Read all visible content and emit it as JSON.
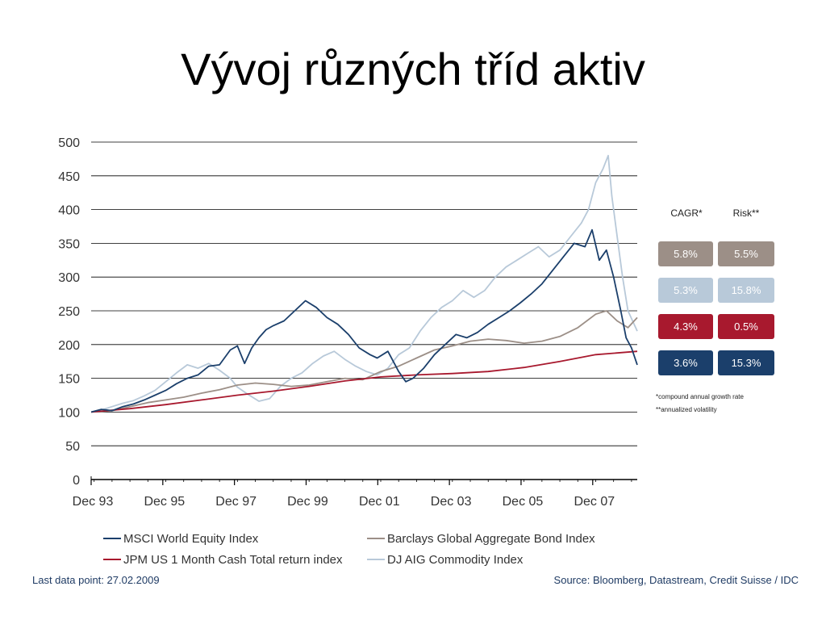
{
  "slide": {
    "title": "Vývoj různých tříd aktiv"
  },
  "chart_data": {
    "type": "line",
    "ylim": [
      0,
      500
    ],
    "yticks": [
      0,
      50,
      100,
      150,
      200,
      250,
      300,
      350,
      400,
      450,
      500
    ],
    "xlim": [
      1993.917,
      2009.16
    ],
    "xticks": [
      {
        "label": "Dec 93",
        "x": 1993.917
      },
      {
        "label": "Dec 95",
        "x": 1995.917
      },
      {
        "label": "Dec 97",
        "x": 1997.917
      },
      {
        "label": "Dec 99",
        "x": 1999.917
      },
      {
        "label": "Dec 01",
        "x": 2001.917
      },
      {
        "label": "Dec 03",
        "x": 2003.917
      },
      {
        "label": "Dec 05",
        "x": 2005.917
      },
      {
        "label": "Dec 07",
        "x": 2007.917
      }
    ],
    "grid": true,
    "legend": "bottom",
    "series": [
      {
        "name": "DJ AIG Commodity Index",
        "color": "#b8c9d9",
        "x": [
          1993.92,
          1994.2,
          1994.5,
          1994.8,
          1995.1,
          1995.4,
          1995.7,
          1996.0,
          1996.3,
          1996.6,
          1996.9,
          1997.2,
          1997.5,
          1997.8,
          1998.0,
          1998.3,
          1998.6,
          1998.9,
          1999.2,
          1999.5,
          1999.8,
          2000.1,
          2000.4,
          2000.7,
          2001.0,
          2001.3,
          2001.6,
          2001.9,
          2002.2,
          2002.5,
          2002.8,
          2003.1,
          2003.4,
          2003.7,
          2004.0,
          2004.3,
          2004.6,
          2004.9,
          2005.2,
          2005.5,
          2005.8,
          2006.1,
          2006.4,
          2006.7,
          2007.0,
          2007.3,
          2007.6,
          2007.8,
          2008.0,
          2008.2,
          2008.35,
          2008.45,
          2008.6,
          2008.75,
          2008.9,
          2009.16
        ],
        "values": [
          100,
          103,
          108,
          113,
          117,
          124,
          132,
          145,
          158,
          170,
          165,
          172,
          162,
          150,
          137,
          126,
          116,
          120,
          138,
          150,
          158,
          172,
          183,
          190,
          178,
          168,
          160,
          155,
          165,
          185,
          195,
          220,
          240,
          255,
          265,
          280,
          270,
          280,
          300,
          315,
          325,
          335,
          345,
          330,
          340,
          360,
          380,
          400,
          440,
          460,
          480,
          420,
          360,
          300,
          250,
          220
        ]
      },
      {
        "name": "Barclays Global Aggregate Bond Index",
        "color": "#9c8f87",
        "x": [
          1993.92,
          1994.5,
          1995.0,
          1995.5,
          1996.0,
          1996.5,
          1997.0,
          1997.5,
          1998.0,
          1998.5,
          1999.0,
          1999.5,
          2000.0,
          2000.5,
          2001.0,
          2001.5,
          2002.0,
          2002.5,
          2003.0,
          2003.5,
          2004.0,
          2004.5,
          2005.0,
          2005.5,
          2006.0,
          2006.5,
          2007.0,
          2007.5,
          2008.0,
          2008.3,
          2008.6,
          2008.9,
          2009.16
        ],
        "values": [
          100,
          102,
          108,
          114,
          118,
          122,
          128,
          133,
          140,
          143,
          141,
          138,
          140,
          145,
          150,
          148,
          160,
          168,
          180,
          192,
          198,
          205,
          208,
          206,
          202,
          205,
          212,
          225,
          245,
          250,
          235,
          225,
          240
        ]
      },
      {
        "name": "JPM US 1 Month Cash Total return index",
        "color": "#a8192e",
        "x": [
          1993.92,
          1995.0,
          1996.0,
          1997.0,
          1998.0,
          1999.0,
          2000.0,
          2001.0,
          2002.0,
          2003.0,
          2004.0,
          2005.0,
          2006.0,
          2007.0,
          2008.0,
          2009.16
        ],
        "values": [
          100,
          105,
          111,
          118,
          125,
          131,
          138,
          146,
          152,
          155,
          157,
          160,
          166,
          175,
          185,
          190
        ]
      },
      {
        "name": "MSCI World Equity Index",
        "color": "#1b3f6b",
        "x": [
          1993.92,
          1994.2,
          1994.5,
          1994.8,
          1995.1,
          1995.4,
          1995.7,
          1996.0,
          1996.3,
          1996.6,
          1996.9,
          1997.2,
          1997.5,
          1997.8,
          1998.0,
          1998.2,
          1998.4,
          1998.6,
          1998.8,
          1999.0,
          1999.3,
          1999.6,
          1999.9,
          2000.2,
          2000.5,
          2000.8,
          2001.1,
          2001.4,
          2001.7,
          2001.9,
          2002.2,
          2002.5,
          2002.7,
          2002.9,
          2003.2,
          2003.5,
          2003.8,
          2004.1,
          2004.4,
          2004.7,
          2005.0,
          2005.3,
          2005.6,
          2005.9,
          2006.2,
          2006.5,
          2006.8,
          2007.1,
          2007.4,
          2007.7,
          2007.9,
          2008.1,
          2008.3,
          2008.5,
          2008.7,
          2008.85,
          2009.0,
          2009.16
        ],
        "values": [
          100,
          104,
          102,
          108,
          112,
          118,
          125,
          132,
          142,
          150,
          155,
          168,
          170,
          192,
          198,
          172,
          195,
          210,
          222,
          228,
          235,
          250,
          265,
          255,
          240,
          230,
          215,
          195,
          185,
          180,
          190,
          160,
          145,
          150,
          165,
          185,
          200,
          215,
          210,
          218,
          230,
          240,
          250,
          262,
          275,
          290,
          310,
          330,
          350,
          345,
          370,
          325,
          340,
          300,
          250,
          210,
          195,
          170
        ]
      }
    ],
    "side_panel": {
      "cagr_header": "CAGR*",
      "risk_header": "Risk**",
      "rows": [
        {
          "cagr": "5.8%",
          "risk": "5.5%",
          "color": "#9c8f87"
        },
        {
          "cagr": "5.3%",
          "risk": "15.8%",
          "color": "#b8c9d9"
        },
        {
          "cagr": "4.3%",
          "risk": "0.5%",
          "color": "#a8192e"
        },
        {
          "cagr": "3.6%",
          "risk": "15.3%",
          "color": "#1b3f6b"
        }
      ],
      "note1": "*compound annual growth rate",
      "note2": "**annualized volatility"
    }
  },
  "footer": {
    "left": "Last data point: 27.02.2009",
    "right": "Source: Bloomberg, Datastream, Credit Suisse / IDC"
  }
}
